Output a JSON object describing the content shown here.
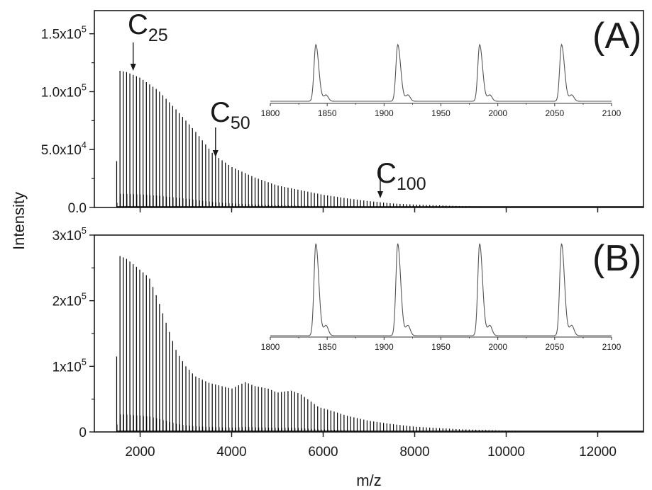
{
  "chart_data": {
    "type": "line",
    "xlabel": "m/z",
    "ylabel": "Intensity",
    "xlim": [
      1000,
      13000
    ],
    "x_ticks": [
      2000,
      4000,
      6000,
      8000,
      10000,
      12000
    ],
    "x_tick_labels": [
      "2000",
      "4000",
      "6000",
      "8000",
      "10000",
      "12000"
    ],
    "panels": [
      {
        "label": "(A)",
        "ylim": [
          0,
          170000
        ],
        "y_ticks": [
          0,
          50000,
          100000,
          150000
        ],
        "y_tick_labels": [
          {
            "mantissa": "0.0",
            "exponent": ""
          },
          {
            "mantissa": "5.0x10",
            "exponent": "4"
          },
          {
            "mantissa": "1.0x10",
            "exponent": "5"
          },
          {
            "mantissa": "1.5x10",
            "exponent": "5"
          }
        ],
        "peak_start_mz": 1488,
        "peak_spacing_mz": 72,
        "first_peak_intensity": 40000,
        "envelope": [
          [
            1560,
            118000
          ],
          [
            1700,
            117000
          ],
          [
            2000,
            112000
          ],
          [
            2400,
            101000
          ],
          [
            2800,
            84000
          ],
          [
            3200,
            66000
          ],
          [
            3600,
            46000
          ],
          [
            4000,
            35000
          ],
          [
            4500,
            26000
          ],
          [
            5000,
            19000
          ],
          [
            5500,
            15000
          ],
          [
            6000,
            11000
          ],
          [
            6500,
            8000
          ],
          [
            7000,
            5500
          ],
          [
            7500,
            3500
          ],
          [
            8000,
            2500
          ],
          [
            9000,
            1200
          ],
          [
            10000,
            600
          ],
          [
            11000,
            300
          ],
          [
            13000,
            100
          ]
        ],
        "annotations": [
          {
            "base": "C",
            "sub": "25",
            "x": 1848
          },
          {
            "base": "C",
            "sub": "50",
            "x": 3648
          },
          {
            "base": "C",
            "sub": "100",
            "x": 7248
          }
        ],
        "inset": {
          "xlim": [
            1800,
            2100
          ],
          "x_ticks": [
            "1800",
            "1850",
            "1900",
            "1950",
            "2000",
            "2050",
            "2100"
          ],
          "peaks": [
            1840,
            1912,
            1984,
            2056
          ]
        }
      },
      {
        "label": "(B)",
        "ylim": [
          0,
          300000
        ],
        "y_ticks": [
          0,
          100000,
          200000,
          300000
        ],
        "y_tick_labels": [
          {
            "mantissa": "0",
            "exponent": ""
          },
          {
            "mantissa": "1x10",
            "exponent": "5"
          },
          {
            "mantissa": "2x10",
            "exponent": "5"
          },
          {
            "mantissa": "3x10",
            "exponent": "5"
          }
        ],
        "peak_start_mz": 1488,
        "peak_spacing_mz": 72,
        "first_peak_intensity": 115000,
        "envelope": [
          [
            1560,
            268000
          ],
          [
            1700,
            264000
          ],
          [
            2000,
            247000
          ],
          [
            2200,
            235000
          ],
          [
            2400,
            200000
          ],
          [
            2600,
            160000
          ],
          [
            2800,
            122000
          ],
          [
            3000,
            100000
          ],
          [
            3200,
            85000
          ],
          [
            3500,
            75000
          ],
          [
            4000,
            66000
          ],
          [
            4300,
            76000
          ],
          [
            4500,
            70000
          ],
          [
            4800,
            66000
          ],
          [
            5000,
            60000
          ],
          [
            5300,
            63000
          ],
          [
            5500,
            58000
          ],
          [
            5700,
            48000
          ],
          [
            5900,
            38000
          ],
          [
            6200,
            32000
          ],
          [
            6500,
            25000
          ],
          [
            7000,
            17000
          ],
          [
            7500,
            12000
          ],
          [
            8000,
            8000
          ],
          [
            9000,
            4000
          ],
          [
            10000,
            2000
          ],
          [
            11000,
            1000
          ],
          [
            13000,
            300
          ]
        ],
        "inset": {
          "xlim": [
            1800,
            2100
          ],
          "x_ticks": [
            "1800",
            "1850",
            "1900",
            "1950",
            "2000",
            "2050",
            "2100"
          ],
          "peaks": [
            1840,
            1912,
            1984,
            2056
          ]
        }
      }
    ]
  },
  "colors": {
    "axis": "#1a1a1a",
    "trace": "#000000",
    "inset_trace": "#555555"
  }
}
